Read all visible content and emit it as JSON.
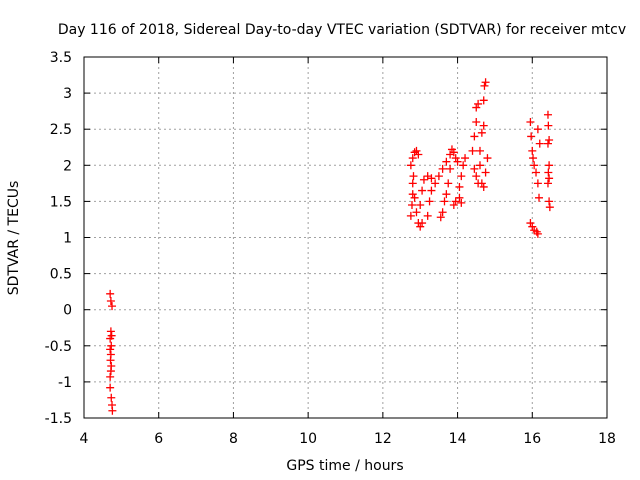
{
  "chart_data": {
    "type": "scatter",
    "title": "Day 116 of 2018, Sidereal Day-to-day VTEC variation (SDTVAR) for receiver mtcv",
    "xlabel": "GPS time / hours",
    "ylabel": "SDTVAR / TECUs",
    "xlim": [
      4,
      18
    ],
    "ylim": [
      -1.5,
      3.5
    ],
    "xticks": [
      4,
      6,
      8,
      10,
      12,
      14,
      16,
      18
    ],
    "yticks": [
      -1.5,
      -1,
      -0.5,
      0,
      0.5,
      1,
      1.5,
      2,
      2.5,
      3,
      3.5
    ],
    "xtick_labels": [
      "4",
      "6",
      "8",
      "10",
      "12",
      "14",
      "16",
      "18"
    ],
    "ytick_labels": [
      "-1.5",
      "-1",
      "-0.5",
      "0",
      "0.5",
      "1",
      "1.5",
      "2",
      "2.5",
      "3",
      "3.5"
    ],
    "grid": true,
    "marker": "+",
    "color": "#ff0000",
    "series": [
      {
        "name": "SDTVAR",
        "points": [
          [
            4.7,
            0.22
          ],
          [
            4.72,
            0.12
          ],
          [
            4.75,
            0.05
          ],
          [
            4.72,
            -0.3
          ],
          [
            4.7,
            -0.4
          ],
          [
            4.73,
            -0.5
          ],
          [
            4.7,
            -0.55
          ],
          [
            4.72,
            -0.62
          ],
          [
            4.71,
            -0.7
          ],
          [
            4.73,
            -0.78
          ],
          [
            4.72,
            -0.85
          ],
          [
            4.7,
            -0.93
          ],
          [
            4.74,
            -0.36
          ],
          [
            4.7,
            -1.08
          ],
          [
            4.73,
            -1.22
          ],
          [
            4.75,
            -1.32
          ],
          [
            4.76,
            -1.4
          ],
          [
            12.75,
            1.3
          ],
          [
            12.78,
            1.45
          ],
          [
            12.8,
            1.6
          ],
          [
            12.8,
            1.75
          ],
          [
            12.82,
            1.85
          ],
          [
            12.75,
            2.0
          ],
          [
            12.8,
            2.1
          ],
          [
            12.85,
            2.18
          ],
          [
            12.9,
            2.2
          ],
          [
            12.95,
            2.15
          ],
          [
            12.85,
            1.55
          ],
          [
            12.9,
            1.35
          ],
          [
            12.95,
            1.2
          ],
          [
            13.0,
            1.15
          ],
          [
            13.05,
            1.2
          ],
          [
            13.0,
            1.45
          ],
          [
            13.05,
            1.65
          ],
          [
            13.1,
            1.8
          ],
          [
            13.2,
            1.85
          ],
          [
            13.3,
            1.82
          ],
          [
            13.2,
            1.3
          ],
          [
            13.25,
            1.5
          ],
          [
            13.3,
            1.65
          ],
          [
            13.4,
            1.75
          ],
          [
            13.5,
            1.85
          ],
          [
            13.6,
            1.95
          ],
          [
            13.7,
            2.05
          ],
          [
            13.8,
            2.15
          ],
          [
            13.85,
            2.22
          ],
          [
            13.9,
            2.18
          ],
          [
            13.55,
            1.28
          ],
          [
            13.6,
            1.35
          ],
          [
            13.65,
            1.5
          ],
          [
            13.7,
            1.6
          ],
          [
            13.75,
            1.75
          ],
          [
            13.8,
            1.95
          ],
          [
            13.95,
            2.1
          ],
          [
            14.0,
            2.05
          ],
          [
            14.1,
            1.85
          ],
          [
            14.05,
            1.7
          ],
          [
            13.9,
            1.45
          ],
          [
            13.95,
            1.5
          ],
          [
            14.05,
            1.55
          ],
          [
            14.1,
            1.48
          ],
          [
            14.15,
            2.0
          ],
          [
            14.2,
            2.1
          ],
          [
            14.4,
            2.2
          ],
          [
            14.45,
            2.4
          ],
          [
            14.5,
            2.6
          ],
          [
            14.5,
            2.8
          ],
          [
            14.55,
            2.85
          ],
          [
            14.45,
            1.95
          ],
          [
            14.5,
            1.85
          ],
          [
            14.55,
            1.75
          ],
          [
            14.6,
            2.0
          ],
          [
            14.6,
            2.2
          ],
          [
            14.65,
            2.45
          ],
          [
            14.7,
            2.55
          ],
          [
            14.7,
            2.9
          ],
          [
            14.72,
            3.1
          ],
          [
            14.75,
            3.15
          ],
          [
            14.65,
            1.75
          ],
          [
            14.7,
            1.7
          ],
          [
            14.75,
            1.9
          ],
          [
            14.8,
            2.1
          ],
          [
            15.95,
            2.6
          ],
          [
            15.97,
            2.4
          ],
          [
            16.0,
            2.2
          ],
          [
            16.02,
            2.1
          ],
          [
            16.05,
            2.0
          ],
          [
            16.1,
            1.9
          ],
          [
            16.15,
            2.5
          ],
          [
            16.2,
            2.3
          ],
          [
            16.15,
            1.75
          ],
          [
            16.18,
            1.55
          ],
          [
            15.95,
            1.2
          ],
          [
            16.0,
            1.15
          ],
          [
            16.05,
            1.1
          ],
          [
            16.12,
            1.08
          ],
          [
            16.15,
            1.05
          ],
          [
            16.42,
            2.7
          ],
          [
            16.43,
            2.55
          ],
          [
            16.45,
            2.35
          ],
          [
            16.42,
            2.3
          ],
          [
            16.45,
            2.0
          ],
          [
            16.43,
            1.9
          ],
          [
            16.45,
            1.82
          ],
          [
            16.42,
            1.75
          ],
          [
            16.45,
            1.5
          ],
          [
            16.47,
            1.42
          ]
        ]
      }
    ]
  }
}
